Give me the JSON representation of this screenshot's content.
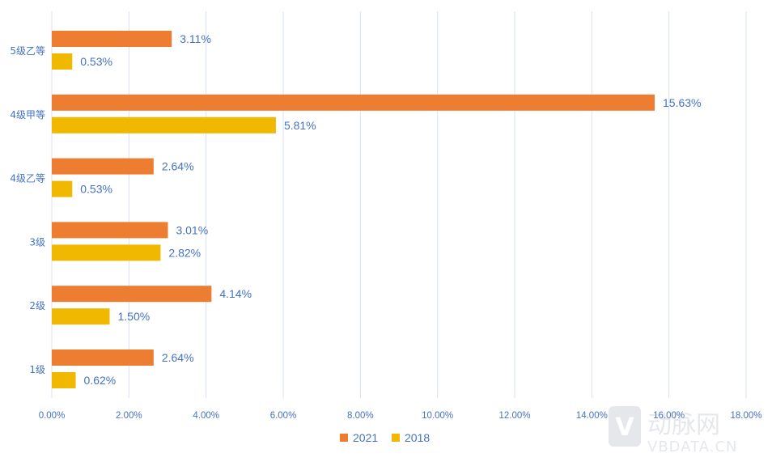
{
  "chart_data": {
    "type": "bar",
    "orientation": "horizontal",
    "categories": [
      "5级乙等",
      "4级甲等",
      "4级乙等",
      "3级",
      "2级",
      "1级"
    ],
    "series": [
      {
        "name": "2021",
        "color": "#ED7D31",
        "values": [
          3.11,
          15.63,
          2.64,
          3.01,
          4.14,
          2.64
        ],
        "labels": [
          "3.11%",
          "15.63%",
          "2.64%",
          "3.01%",
          "4.14%",
          "2.64%"
        ]
      },
      {
        "name": "2018",
        "color": "#F0B800",
        "values": [
          0.53,
          5.81,
          0.53,
          2.82,
          1.5,
          0.62
        ],
        "labels": [
          "0.53%",
          "5.81%",
          "0.53%",
          "2.82%",
          "1.50%",
          "0.62%"
        ]
      }
    ],
    "xlim": [
      0,
      18
    ],
    "xticks": [
      0,
      2,
      4,
      6,
      8,
      10,
      12,
      14,
      16,
      18
    ],
    "xtick_labels": [
      "0.00%",
      "2.00%",
      "4.00%",
      "6.00%",
      "8.00%",
      "10.00%",
      "12.00%",
      "14.00%",
      "16.00%",
      "18.00%"
    ],
    "title": "",
    "xlabel": "",
    "ylabel": "",
    "grid": "vertical",
    "legend_position": "bottom-center",
    "label_color": "#4472C4",
    "grid_color": "#D9E1F2"
  },
  "watermark": {
    "brand": "动脉网",
    "site": "VBDATA.CN"
  }
}
